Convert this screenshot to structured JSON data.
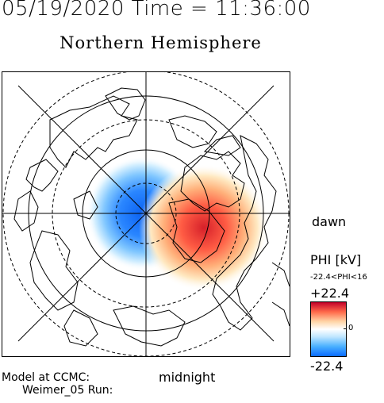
{
  "header": {
    "date_time": "05/19/2020 Time = 11:36:00"
  },
  "map": {
    "title": "Northern Hemisphere",
    "labels": {
      "dawn": "dawn",
      "midnight": "midnight"
    }
  },
  "colorbar": {
    "title": "PHI [kV]",
    "range_text": "-22.4<PHI<16",
    "max_label": "+22.4",
    "zero_label": "0",
    "min_label": "-22.4",
    "colors": {
      "positive": "#c2002a",
      "neutral": "#ffffff",
      "negative": "#0a6bff"
    }
  },
  "footer": {
    "model_line1": "Model at CCMC:",
    "model_line2": "Weimer_05 Run:"
  }
}
